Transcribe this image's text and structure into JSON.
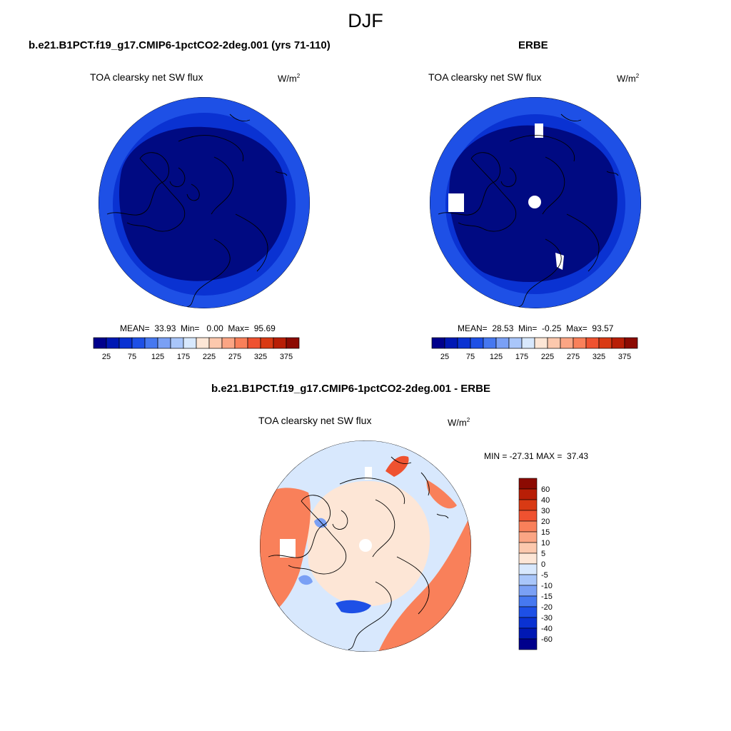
{
  "title": "DJF",
  "panels": [
    {
      "title": "b.e21.B1PCT.f19_g17.CMIP6-1pctCO2-2deg.001 (yrs 71-110)",
      "variable": "TOA clearsky net SW flux",
      "units_base": "W/m",
      "units_exp": "2",
      "stats": "MEAN=  33.93  Min=   0.00  Max=  95.69"
    },
    {
      "title": "ERBE",
      "variable": "TOA clearsky net SW flux",
      "units_base": "W/m",
      "units_exp": "2",
      "stats": "MEAN=  28.53  Min=  -0.25  Max=  93.57"
    },
    {
      "title": "b.e21.B1PCT.f19_g17.CMIP6-1pctCO2-2deg.001 - ERBE",
      "variable": "TOA clearsky net SW flux",
      "units_base": "W/m",
      "units_exp": "2",
      "stats": "MIN = -27.31 MAX =  37.43"
    }
  ],
  "colorbar_abs": {
    "colors": [
      "#00008c",
      "#0018b4",
      "#0a32d2",
      "#1e50e6",
      "#4678f0",
      "#7aa0f5",
      "#a9c6fa",
      "#d8e8fd",
      "#fde6d6",
      "#fcc8ad",
      "#fba584",
      "#f9805a",
      "#ef5230",
      "#d93a14",
      "#b81e06",
      "#8c0a02"
    ],
    "tick_labels": [
      "25",
      "75",
      "125",
      "175",
      "225",
      "275",
      "325",
      "375"
    ]
  },
  "colorbar_diff": {
    "colors": [
      "#00008c",
      "#0018b4",
      "#0a32d2",
      "#1e50e6",
      "#4678f0",
      "#7aa0f5",
      "#a9c6fa",
      "#d8e8fd",
      "#fde6d6",
      "#fcc8ad",
      "#fba584",
      "#f9805a",
      "#ef5230",
      "#d93a14",
      "#b81e06",
      "#8c0a02"
    ],
    "tick_labels": [
      "60",
      "40",
      "30",
      "20",
      "15",
      "10",
      "5",
      "0",
      "-5",
      "-10",
      "-15",
      "-20",
      "-30",
      "-40",
      "-60"
    ]
  },
  "map_colors": {
    "deep": "#000a82",
    "mid": "#0a32d2",
    "outer": "#1e50e6",
    "diff_base": "#d8e8fd",
    "diff_warm": "#fde6d6",
    "diff_red": "#f9805a",
    "diff_dark_red": "#ef5230",
    "diff_blue": "#7aa0f5",
    "diff_deep_blue": "#1e50e6"
  }
}
